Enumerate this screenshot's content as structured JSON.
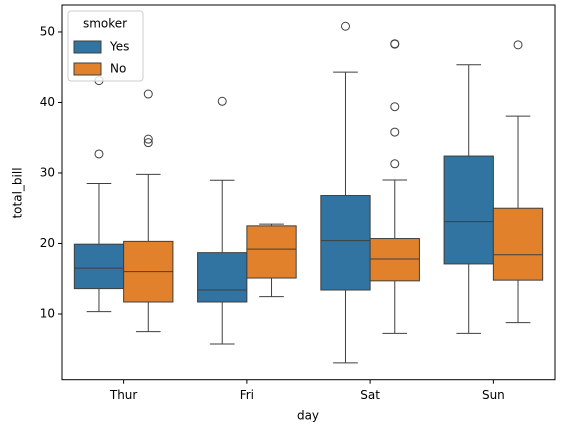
{
  "chart_data": {
    "type": "box",
    "x_label": "day",
    "y_label": "total_bill",
    "categories": [
      "Thur",
      "Fri",
      "Sat",
      "Sun"
    ],
    "legend_title": "smoker",
    "legend_position": "upper left",
    "ylim": [
      0.68,
      53.2
    ],
    "yticks": [
      10,
      20,
      30,
      40,
      50
    ],
    "series": [
      {
        "name": "Yes",
        "color": "#3274a1",
        "boxes": [
          {
            "low": 10.34,
            "q1": 13.6,
            "median": 16.5,
            "q3": 19.9,
            "high": 28.5,
            "outliers": [
              32.7,
              43.1
            ]
          },
          {
            "low": 5.75,
            "q1": 11.7,
            "median": 13.4,
            "q3": 18.7,
            "high": 28.97,
            "outliers": [
              40.17
            ]
          },
          {
            "low": 3.07,
            "q1": 13.4,
            "median": 20.4,
            "q3": 26.8,
            "high": 44.3,
            "outliers": [
              50.81
            ]
          },
          {
            "low": 7.25,
            "q1": 17.1,
            "median": 23.1,
            "q3": 32.4,
            "high": 45.35,
            "outliers": []
          }
        ]
      },
      {
        "name": "No",
        "color": "#e1812c",
        "boxes": [
          {
            "low": 7.5,
            "q1": 11.7,
            "median": 16.0,
            "q3": 20.3,
            "high": 29.8,
            "outliers": [
              34.3,
              34.8,
              41.2
            ]
          },
          {
            "low": 12.46,
            "q1": 15.1,
            "median": 19.2,
            "q3": 22.5,
            "high": 22.75,
            "outliers": []
          },
          {
            "low": 7.25,
            "q1": 14.7,
            "median": 17.8,
            "q3": 20.7,
            "high": 29.0,
            "outliers": [
              31.3,
              35.8,
              39.4,
              48.27,
              48.33
            ]
          },
          {
            "low": 8.77,
            "q1": 14.8,
            "median": 18.4,
            "q3": 25.0,
            "high": 38.07,
            "outliers": [
              48.17
            ]
          }
        ]
      }
    ]
  }
}
